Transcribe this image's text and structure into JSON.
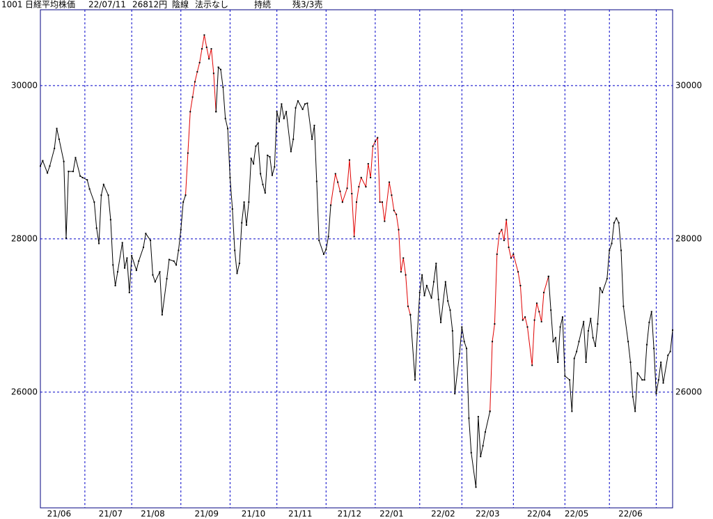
{
  "chart_data": {
    "type": "line",
    "title": [
      "1001",
      "日経平均株価",
      "22/07/11",
      "26812円",
      "陰線",
      "法示なし",
      "持続",
      "残3/3売"
    ],
    "xlim": [
      0,
      270
    ],
    "xgrid": [
      19,
      39,
      60,
      81,
      101,
      122,
      143,
      162,
      180,
      202,
      224,
      243,
      263
    ],
    "xticks": [
      {
        "value": 8,
        "label": "21/06"
      },
      {
        "value": 30,
        "label": "21/07"
      },
      {
        "value": 48,
        "label": "21/08"
      },
      {
        "value": 71,
        "label": "21/09"
      },
      {
        "value": 91,
        "label": "21/10"
      },
      {
        "value": 111,
        "label": "21/11"
      },
      {
        "value": 132,
        "label": "21/12"
      },
      {
        "value": 150,
        "label": "22/01"
      },
      {
        "value": 172,
        "label": "22/02"
      },
      {
        "value": 191,
        "label": "22/03"
      },
      {
        "value": 213,
        "label": "22/04"
      },
      {
        "value": 229,
        "label": "22/05"
      },
      {
        "value": 252,
        "label": "22/06"
      }
    ],
    "ylim": [
      24490,
      30990
    ],
    "yticks": [
      26000,
      28000,
      30000
    ],
    "grid": true,
    "series": [
      {
        "color": "#000000",
        "x": [
          0,
          1,
          3,
          4,
          6,
          7,
          8,
          10,
          11,
          12,
          14,
          15,
          17,
          18,
          20,
          21,
          23,
          24,
          25,
          26,
          27,
          29,
          30,
          31,
          32,
          33,
          35,
          36,
          37,
          38,
          39,
          41,
          42,
          44,
          45,
          47,
          48,
          49,
          51,
          52,
          54,
          55,
          57,
          58,
          59,
          60,
          61,
          62
        ],
        "values": [
          28950,
          29020,
          28860,
          28950,
          29180,
          29440,
          29300,
          29010,
          28010,
          28880,
          28880,
          29060,
          28820,
          28800,
          28770,
          28650,
          28480,
          28140,
          27940,
          28570,
          28710,
          28570,
          28250,
          27660,
          27390,
          27570,
          27950,
          27620,
          27750,
          27300,
          27780,
          27590,
          27710,
          27890,
          28070,
          27980,
          27530,
          27440,
          27570,
          27010,
          27480,
          27730,
          27710,
          27660,
          27850,
          28120,
          28480,
          28570
        ]
      },
      {
        "color": "#e00000",
        "x": [
          62,
          63,
          64,
          65,
          66,
          67,
          68,
          69,
          70,
          71,
          72,
          73,
          74,
          75
        ],
        "values": [
          28570,
          29120,
          29660,
          29850,
          30050,
          30180,
          30300,
          30480,
          30660,
          30500,
          30350,
          30480,
          30160,
          29660
        ]
      },
      {
        "color": "#000000",
        "x": [
          75,
          76,
          77,
          78,
          79,
          80,
          81,
          82,
          83,
          84,
          85,
          86,
          87,
          88,
          89,
          90,
          91,
          92,
          93,
          94,
          95,
          96,
          97,
          98,
          99,
          100,
          101,
          102,
          103,
          104,
          105,
          107,
          108,
          109,
          110,
          112,
          113,
          114,
          116,
          117,
          118,
          119,
          121,
          122,
          123,
          124
        ],
        "values": [
          29660,
          30240,
          30210,
          29980,
          29570,
          29440,
          28800,
          28390,
          27850,
          27550,
          27680,
          28210,
          28480,
          28180,
          28480,
          29050,
          28980,
          29210,
          29250,
          28850,
          28710,
          28600,
          29090,
          29070,
          28830,
          28940,
          29660,
          29530,
          29760,
          29570,
          29660,
          29140,
          29300,
          29710,
          29800,
          29690,
          29760,
          29770,
          29300,
          29480,
          28750,
          27980,
          27800,
          27860,
          28030,
          28440
        ]
      },
      {
        "color": "#e00000",
        "x": [
          124,
          126,
          127,
          128,
          129,
          131,
          132,
          133,
          134,
          135,
          136,
          137,
          139,
          140,
          141,
          142,
          143,
          144,
          145,
          146,
          147,
          149,
          150,
          151,
          152,
          153,
          154,
          155,
          156,
          157,
          158
        ],
        "values": [
          28440,
          28850,
          28740,
          28620,
          28480,
          28660,
          29030,
          28590,
          28030,
          28480,
          28680,
          28800,
          28680,
          28980,
          28800,
          29210,
          29270,
          29320,
          28480,
          28480,
          28230,
          28740,
          28570,
          28370,
          28320,
          28120,
          27570,
          27750,
          27530,
          27120,
          27010
        ]
      },
      {
        "color": "#000000",
        "x": [
          158,
          160,
          161,
          162,
          163,
          164,
          165,
          167,
          168,
          169,
          170,
          171,
          173,
          174,
          175,
          176,
          177,
          179,
          180,
          181,
          182,
          183,
          184,
          186,
          187,
          188,
          189,
          190,
          192
        ],
        "values": [
          27010,
          26160,
          26770,
          27300,
          27530,
          27260,
          27390,
          27230,
          27440,
          27680,
          27210,
          26910,
          27440,
          27190,
          27070,
          26800,
          25980,
          26500,
          26850,
          26660,
          26570,
          25660,
          25210,
          24760,
          25680,
          25160,
          25300,
          25480,
          25750
        ]
      },
      {
        "color": "#e00000",
        "x": [
          192,
          193,
          194,
          195,
          196,
          197,
          198,
          199,
          200,
          201,
          202,
          204,
          205,
          206,
          207,
          208,
          210,
          211,
          212,
          213,
          214,
          215,
          217
        ],
        "values": [
          25750,
          26660,
          26890,
          27800,
          28070,
          28120,
          27980,
          28250,
          27890,
          27750,
          27800,
          27570,
          27390,
          26940,
          26980,
          26850,
          26350,
          26940,
          27160,
          27050,
          26920,
          27300,
          27510
        ]
      },
      {
        "color": "#000000",
        "x": [
          217,
          218,
          219,
          220,
          221,
          222,
          223,
          224,
          226,
          227,
          228,
          229,
          230,
          232,
          233,
          234,
          235,
          236,
          237,
          238,
          239,
          240,
          242,
          243,
          244,
          245,
          246,
          247,
          248,
          249,
          251,
          252,
          253,
          254,
          255,
          257,
          258,
          259,
          260,
          261,
          262,
          263,
          264,
          265,
          266,
          268,
          269,
          270
        ],
        "values": [
          27510,
          27070,
          26660,
          26710,
          26390,
          26850,
          26980,
          26210,
          26160,
          25750,
          26440,
          26530,
          26660,
          26920,
          26390,
          26800,
          26960,
          26710,
          26600,
          26890,
          27360,
          27300,
          27480,
          27850,
          27940,
          28210,
          28270,
          28210,
          27850,
          27120,
          26660,
          26390,
          25940,
          25750,
          26250,
          26160,
          26160,
          26620,
          26910,
          27050,
          26570,
          25980,
          26160,
          26390,
          26120,
          26480,
          26530,
          26810
        ]
      }
    ]
  }
}
